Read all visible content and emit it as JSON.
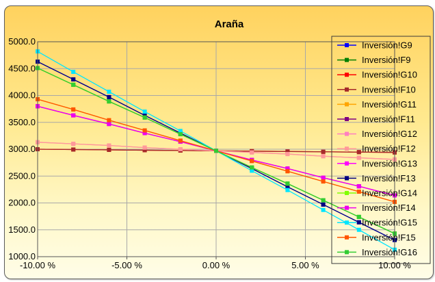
{
  "chart_data": {
    "type": "line",
    "title": "Araña",
    "xlabel": "",
    "ylabel": "",
    "x": [
      -10,
      -8,
      -6,
      -4,
      -2,
      0,
      2,
      4,
      6,
      8,
      10
    ],
    "xlim": [
      -10,
      10
    ],
    "ylim": [
      1000,
      5000
    ],
    "x_tick_values": [
      -10,
      -5,
      0,
      5,
      10
    ],
    "x_tick_labels": [
      "-10.00 %",
      "-5.00 %",
      "0.00 %",
      "5.00 %",
      "10.00 %"
    ],
    "y_tick_values": [
      1000,
      1500,
      2000,
      2500,
      3000,
      3500,
      4000,
      4500,
      5000
    ],
    "y_tick_labels": [
      "1000.0",
      "1500.0",
      "2000.0",
      "2500.0",
      "3000.0",
      "3500.0",
      "4000.0",
      "4500.0",
      "5000.0"
    ],
    "grid": true,
    "legend_position": "right",
    "series": [
      {
        "name": "Inversión!G9",
        "color": "#0000ff",
        "values": [
          4630,
          4300,
          3970,
          3630,
          3300,
          2970,
          2640,
          2300,
          1970,
          1640,
          1310
        ]
      },
      {
        "name": "Inversión!F9",
        "color": "#008000",
        "values": [
          4510,
          4200,
          3890,
          3590,
          3280,
          2970,
          2660,
          2360,
          2050,
          1740,
          1430
        ]
      },
      {
        "name": "Inversión!G10",
        "color": "#ff0000",
        "values": [
          3000,
          2994,
          2988,
          2982,
          2976,
          2970,
          2964,
          2958,
          2952,
          2946,
          2940
        ]
      },
      {
        "name": "Inversión!F10",
        "color": "#a52a2a",
        "values": [
          3000,
          2994,
          2988,
          2982,
          2976,
          2970,
          2964,
          2958,
          2952,
          2946,
          2940
        ]
      },
      {
        "name": "Inversión!G11",
        "color": "#ffa500",
        "values": [
          3930,
          3740,
          3540,
          3350,
          3160,
          2970,
          2780,
          2590,
          2400,
          2210,
          2020
        ]
      },
      {
        "name": "Inversión!F11",
        "color": "#800080",
        "values": [
          3800,
          3630,
          3470,
          3300,
          3140,
          2970,
          2800,
          2640,
          2470,
          2310,
          2140
        ]
      },
      {
        "name": "Inversión!G12",
        "color": "#ff80c0",
        "values": [
          3130,
          3100,
          3070,
          3030,
          3000,
          2970,
          2940,
          2910,
          2870,
          2840,
          2810
        ]
      },
      {
        "name": "Inversión!F12",
        "color": "#ff9999",
        "values": [
          3130,
          3100,
          3070,
          3030,
          3000,
          2970,
          2940,
          2910,
          2870,
          2840,
          2810
        ]
      },
      {
        "name": "Inversión!G13",
        "color": "#ff00ff",
        "values": [
          3800,
          3630,
          3470,
          3300,
          3140,
          2970,
          2800,
          2640,
          2470,
          2310,
          2140
        ]
      },
      {
        "name": "Inversión!F13",
        "color": "#000080",
        "values": [
          4630,
          4300,
          3970,
          3630,
          3300,
          2970,
          2640,
          2300,
          1970,
          1640,
          1310
        ]
      },
      {
        "name": "Inversión!G14",
        "color": "#80ff00",
        "values": [
          4510,
          4200,
          3890,
          3590,
          3280,
          2970,
          2660,
          2360,
          2050,
          1740,
          1430
        ]
      },
      {
        "name": "Inversión!F14",
        "color": "#ee00ee",
        "values": [
          3800,
          3630,
          3470,
          3300,
          3140,
          2970,
          2800,
          2640,
          2470,
          2310,
          2140
        ]
      },
      {
        "name": "Inversión!G15",
        "color": "#00e5ff",
        "values": [
          4820,
          4440,
          4070,
          3700,
          3340,
          2970,
          2600,
          2240,
          1870,
          1500,
          1130
        ]
      },
      {
        "name": "Inversión!F15",
        "color": "#ff5500",
        "values": [
          3930,
          3740,
          3540,
          3350,
          3160,
          2970,
          2780,
          2590,
          2400,
          2210,
          2020
        ]
      },
      {
        "name": "Inversión!G16",
        "color": "#33cc33",
        "values": [
          4510,
          4200,
          3890,
          3590,
          3280,
          2970,
          2660,
          2360,
          2050,
          1740,
          1430
        ]
      }
    ]
  }
}
